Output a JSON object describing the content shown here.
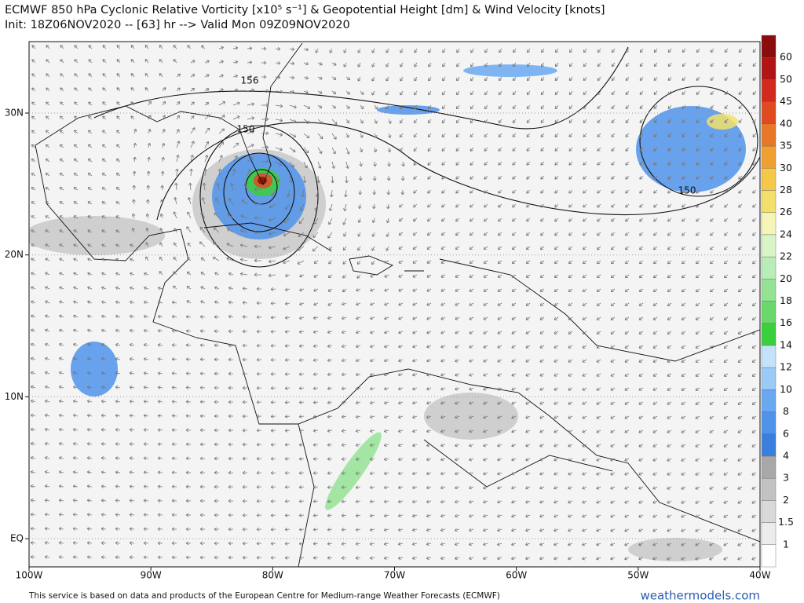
{
  "header": {
    "title_line1": "ECMWF 850 hPa Cyclonic Relative Vorticity [x10⁵ s⁻¹] & Geopotential Height [dm] & Wind Velocity [knots]",
    "title_line2": "Init: 18Z06NOV2020 -- [63] hr --> Valid Mon 09Z09NOV2020"
  },
  "map": {
    "lon_labels": [
      "100W",
      "90W",
      "80W",
      "70W",
      "60W",
      "50W",
      "40W"
    ],
    "lat_labels": [
      "30N",
      "20N",
      "10N",
      "EQ"
    ],
    "contour_labels": [
      "156",
      "150",
      "150"
    ]
  },
  "colorbar": {
    "labels": [
      "1",
      "1.5",
      "2",
      "3",
      "4",
      "6",
      "8",
      "10",
      "12",
      "14",
      "16",
      "18",
      "20",
      "22",
      "24",
      "26",
      "28",
      "30",
      "35",
      "40",
      "45",
      "50",
      "60"
    ],
    "colors": [
      "#ffffff",
      "#ececec",
      "#d9d9d9",
      "#c2c2c2",
      "#a8a8a8",
      "#3a7ee0",
      "#4f92ea",
      "#6aa8f2",
      "#9ccaf6",
      "#c4e2fa",
      "#3ccf3c",
      "#6ad86a",
      "#94e394",
      "#b8edb8",
      "#d9f5c8",
      "#f5f5b8",
      "#f2e06a",
      "#f5c84a",
      "#f0a030",
      "#e87828",
      "#e04a20",
      "#d22a1e",
      "#b01414",
      "#8a0c0c"
    ]
  },
  "footer": {
    "disclaimer": "This service is based on data and products of the European Centre for Medium-range Weather Forecasts (ECMWF)",
    "brand": "weathermodels.com"
  }
}
